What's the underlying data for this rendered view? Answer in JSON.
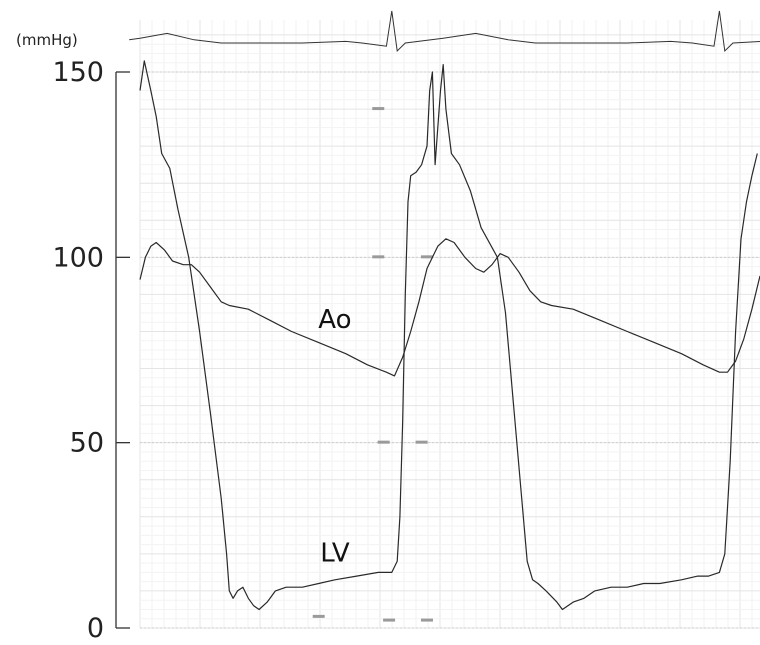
{
  "chart_data": {
    "type": "line",
    "ylabel": "(mmHg)",
    "ylim": [
      0,
      150
    ],
    "yticks": [
      0,
      50,
      100,
      150
    ],
    "grid": true,
    "series": [
      {
        "name": "Ao",
        "points": [
          [
            0.0,
            94
          ],
          [
            0.01,
            100
          ],
          [
            0.02,
            103
          ],
          [
            0.03,
            104
          ],
          [
            0.045,
            102
          ],
          [
            0.06,
            99
          ],
          [
            0.08,
            98
          ],
          [
            0.095,
            98
          ],
          [
            0.11,
            96
          ],
          [
            0.13,
            92
          ],
          [
            0.15,
            88
          ],
          [
            0.165,
            87
          ],
          [
            0.2,
            86
          ],
          [
            0.24,
            83
          ],
          [
            0.28,
            80
          ],
          [
            0.33,
            77
          ],
          [
            0.38,
            74
          ],
          [
            0.42,
            71
          ],
          [
            0.455,
            69
          ],
          [
            0.47,
            68
          ],
          [
            0.485,
            73
          ],
          [
            0.5,
            80
          ],
          [
            0.515,
            88
          ],
          [
            0.53,
            97
          ],
          [
            0.55,
            103
          ],
          [
            0.565,
            105
          ],
          [
            0.58,
            104
          ],
          [
            0.6,
            100
          ],
          [
            0.62,
            97
          ],
          [
            0.635,
            96
          ],
          [
            0.65,
            98
          ],
          [
            0.665,
            101
          ],
          [
            0.68,
            100
          ],
          [
            0.7,
            96
          ],
          [
            0.72,
            91
          ],
          [
            0.74,
            88
          ],
          [
            0.76,
            87
          ],
          [
            0.8,
            86
          ],
          [
            0.85,
            83
          ],
          [
            0.9,
            80
          ],
          [
            0.95,
            77
          ],
          [
            1.0,
            74
          ],
          [
            1.04,
            71
          ],
          [
            1.07,
            69
          ],
          [
            1.085,
            69
          ],
          [
            1.1,
            72
          ],
          [
            1.115,
            78
          ],
          [
            1.13,
            86
          ],
          [
            1.145,
            95
          ]
        ]
      },
      {
        "name": "LV",
        "points": [
          [
            0.0,
            145
          ],
          [
            0.008,
            153
          ],
          [
            0.02,
            145
          ],
          [
            0.03,
            138
          ],
          [
            0.04,
            128
          ],
          [
            0.055,
            124
          ],
          [
            0.07,
            113
          ],
          [
            0.09,
            100
          ],
          [
            0.11,
            80
          ],
          [
            0.13,
            58
          ],
          [
            0.15,
            35
          ],
          [
            0.16,
            20
          ],
          [
            0.165,
            10
          ],
          [
            0.172,
            8
          ],
          [
            0.18,
            10
          ],
          [
            0.19,
            11
          ],
          [
            0.2,
            8
          ],
          [
            0.21,
            6
          ],
          [
            0.22,
            5
          ],
          [
            0.235,
            7
          ],
          [
            0.25,
            10
          ],
          [
            0.27,
            11
          ],
          [
            0.3,
            11
          ],
          [
            0.33,
            12
          ],
          [
            0.36,
            13
          ],
          [
            0.4,
            14
          ],
          [
            0.44,
            15
          ],
          [
            0.465,
            15
          ],
          [
            0.475,
            18
          ],
          [
            0.48,
            30
          ],
          [
            0.485,
            55
          ],
          [
            0.49,
            90
          ],
          [
            0.495,
            115
          ],
          [
            0.5,
            122
          ],
          [
            0.51,
            123
          ],
          [
            0.52,
            125
          ],
          [
            0.53,
            130
          ],
          [
            0.535,
            145
          ],
          [
            0.54,
            150
          ],
          [
            0.545,
            125
          ],
          [
            0.55,
            135
          ],
          [
            0.555,
            145
          ],
          [
            0.56,
            152
          ],
          [
            0.565,
            140
          ],
          [
            0.575,
            128
          ],
          [
            0.59,
            125
          ],
          [
            0.61,
            118
          ],
          [
            0.63,
            108
          ],
          [
            0.66,
            100
          ],
          [
            0.675,
            85
          ],
          [
            0.69,
            60
          ],
          [
            0.705,
            35
          ],
          [
            0.715,
            18
          ],
          [
            0.725,
            13
          ],
          [
            0.735,
            12
          ],
          [
            0.75,
            10
          ],
          [
            0.77,
            7
          ],
          [
            0.78,
            5
          ],
          [
            0.8,
            7
          ],
          [
            0.82,
            8
          ],
          [
            0.84,
            10
          ],
          [
            0.87,
            11
          ],
          [
            0.9,
            11
          ],
          [
            0.93,
            12
          ],
          [
            0.96,
            12
          ],
          [
            1.0,
            13
          ],
          [
            1.03,
            14
          ],
          [
            1.05,
            14
          ],
          [
            1.07,
            15
          ],
          [
            1.08,
            20
          ],
          [
            1.09,
            45
          ],
          [
            1.1,
            80
          ],
          [
            1.11,
            105
          ],
          [
            1.12,
            115
          ],
          [
            1.13,
            122
          ],
          [
            1.14,
            128
          ]
        ]
      }
    ],
    "annotations": [
      {
        "text": "Ao",
        "x": 0.36,
        "y": 81
      },
      {
        "text": "LV",
        "x": 0.36,
        "y": 18
      }
    ],
    "ecg": {
      "points": [
        [
          -0.02,
          0.1
        ],
        [
          0.0,
          0.15
        ],
        [
          0.05,
          0.3
        ],
        [
          0.1,
          0.1
        ],
        [
          0.15,
          0.0
        ],
        [
          0.3,
          0.0
        ],
        [
          0.38,
          0.05
        ],
        [
          0.41,
          0.0
        ],
        [
          0.455,
          -0.1
        ],
        [
          0.465,
          1.0
        ],
        [
          0.475,
          -0.25
        ],
        [
          0.49,
          0.0
        ],
        [
          0.56,
          0.15
        ],
        [
          0.62,
          0.3
        ],
        [
          0.68,
          0.1
        ],
        [
          0.73,
          0.0
        ],
        [
          0.9,
          0.0
        ],
        [
          0.98,
          0.05
        ],
        [
          1.02,
          0.0
        ],
        [
          1.06,
          -0.1
        ],
        [
          1.07,
          1.0
        ],
        [
          1.08,
          -0.25
        ],
        [
          1.095,
          0.0
        ],
        [
          1.15,
          0.05
        ]
      ]
    }
  }
}
